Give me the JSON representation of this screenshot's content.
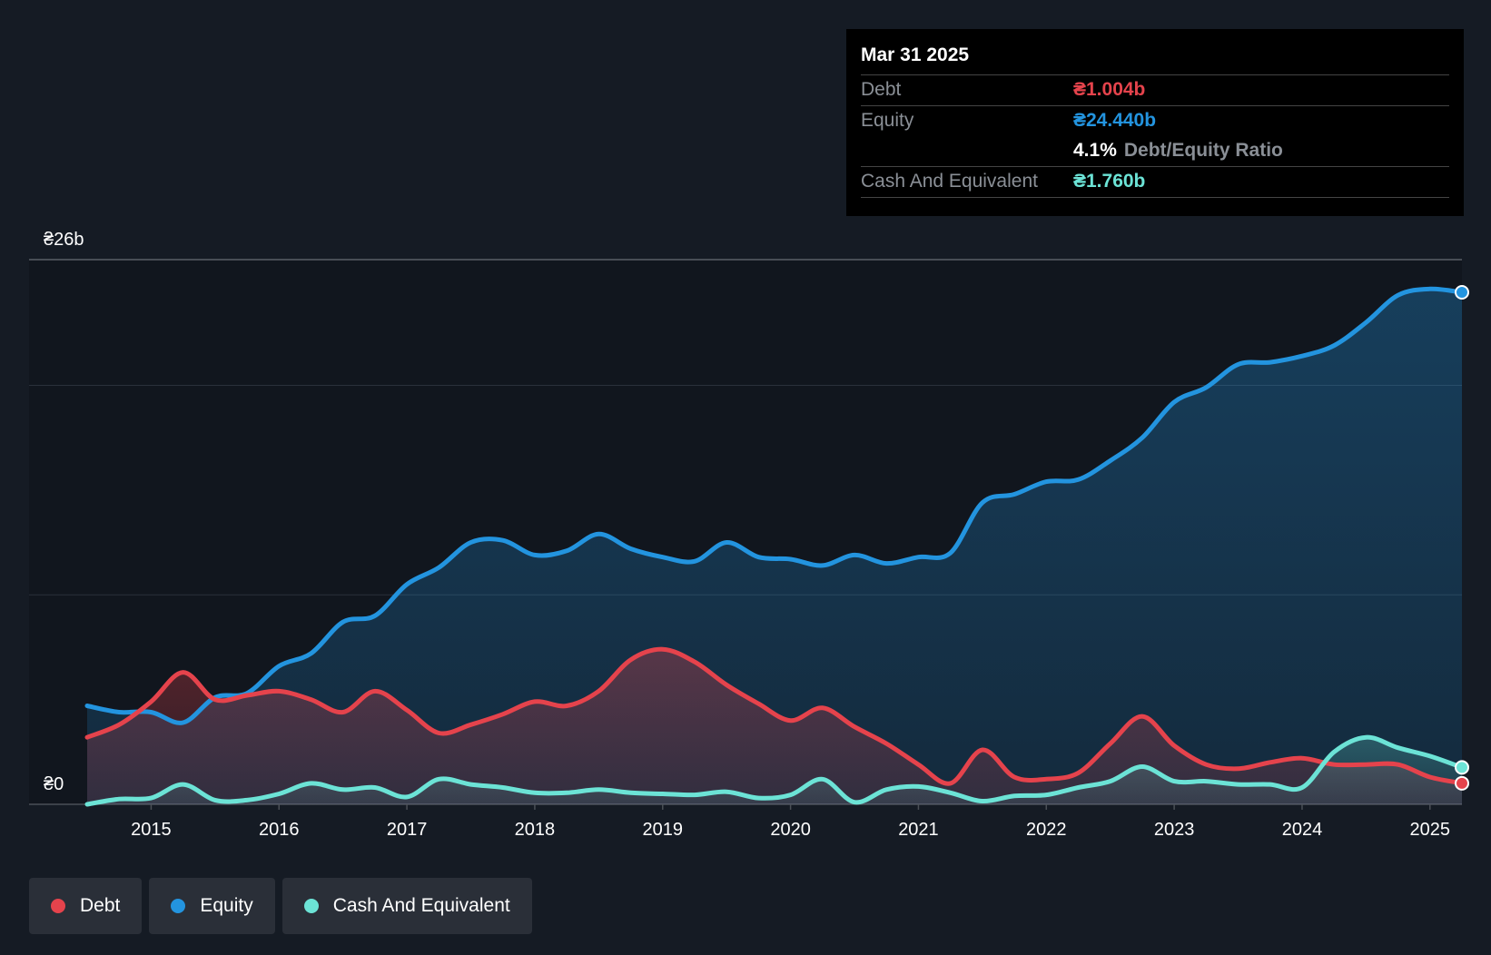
{
  "tooltip": {
    "date": "Mar 31 2025",
    "debt_label": "Debt",
    "debt_value": "₴1.004b",
    "equity_label": "Equity",
    "equity_value": "₴24.440b",
    "ratio_value": "4.1%",
    "ratio_label": "Debt/Equity Ratio",
    "cash_label": "Cash And Equivalent",
    "cash_value": "₴1.760b"
  },
  "legend": {
    "debt": "Debt",
    "equity": "Equity",
    "cash": "Cash And Equivalent"
  },
  "colors": {
    "debt": "#e5434c",
    "equity": "#2394df",
    "cash": "#6ce3d6",
    "background": "#151b24"
  },
  "chart_data": {
    "type": "area",
    "title": "",
    "xlabel": "",
    "ylabel": "",
    "y_top_label": "₴26b",
    "y_bottom_label": "₴0",
    "ylim": [
      0,
      26
    ],
    "xlim": [
      2014.5,
      2025.25
    ],
    "xticks": [
      "2015",
      "2016",
      "2017",
      "2018",
      "2019",
      "2020",
      "2021",
      "2022",
      "2023",
      "2024",
      "2025"
    ],
    "gridlines": [
      0,
      10,
      20,
      26
    ],
    "series": [
      {
        "name": "Equity",
        "x": [
          2014.5,
          2014.75,
          2015.0,
          2015.25,
          2015.5,
          2015.75,
          2016.0,
          2016.25,
          2016.5,
          2016.75,
          2017.0,
          2017.25,
          2017.5,
          2017.75,
          2018.0,
          2018.25,
          2018.5,
          2018.75,
          2019.0,
          2019.25,
          2019.5,
          2019.75,
          2020.0,
          2020.25,
          2020.5,
          2020.75,
          2021.0,
          2021.25,
          2021.5,
          2021.75,
          2022.0,
          2022.25,
          2022.5,
          2022.75,
          2023.0,
          2023.25,
          2023.5,
          2023.75,
          2024.0,
          2024.25,
          2024.5,
          2024.75,
          2025.0,
          2025.25
        ],
        "values": [
          4.7,
          4.4,
          4.4,
          3.9,
          5.1,
          5.3,
          6.6,
          7.2,
          8.7,
          9.0,
          10.5,
          11.3,
          12.5,
          12.6,
          11.9,
          12.1,
          12.9,
          12.2,
          11.8,
          11.6,
          12.5,
          11.8,
          11.7,
          11.4,
          11.9,
          11.5,
          11.8,
          12.0,
          14.4,
          14.8,
          15.4,
          15.5,
          16.4,
          17.5,
          19.2,
          19.9,
          21.0,
          21.1,
          21.4,
          21.9,
          23.0,
          24.3,
          24.6,
          24.44
        ]
      },
      {
        "name": "Debt",
        "x": [
          2014.5,
          2014.75,
          2015.0,
          2015.25,
          2015.5,
          2015.75,
          2016.0,
          2016.25,
          2016.5,
          2016.75,
          2017.0,
          2017.25,
          2017.5,
          2017.75,
          2018.0,
          2018.25,
          2018.5,
          2018.75,
          2019.0,
          2019.25,
          2019.5,
          2019.75,
          2020.0,
          2020.25,
          2020.5,
          2020.75,
          2021.0,
          2021.25,
          2021.5,
          2021.75,
          2022.0,
          2022.25,
          2022.5,
          2022.75,
          2023.0,
          2023.25,
          2023.5,
          2023.75,
          2024.0,
          2024.25,
          2024.5,
          2024.75,
          2025.0,
          2025.25
        ],
        "values": [
          3.2,
          3.8,
          4.9,
          6.3,
          5.0,
          5.2,
          5.4,
          5.0,
          4.4,
          5.4,
          4.5,
          3.4,
          3.8,
          4.3,
          4.9,
          4.7,
          5.4,
          6.9,
          7.4,
          6.8,
          5.7,
          4.8,
          4.0,
          4.6,
          3.7,
          2.9,
          1.9,
          1.0,
          2.6,
          1.3,
          1.2,
          1.5,
          2.9,
          4.2,
          2.8,
          1.9,
          1.7,
          2.0,
          2.2,
          1.9,
          1.9,
          1.9,
          1.3,
          1.004
        ]
      },
      {
        "name": "Cash And Equivalent",
        "x": [
          2014.5,
          2014.75,
          2015.0,
          2015.25,
          2015.5,
          2015.75,
          2016.0,
          2016.25,
          2016.5,
          2016.75,
          2017.0,
          2017.25,
          2017.5,
          2017.75,
          2018.0,
          2018.25,
          2018.5,
          2018.75,
          2019.0,
          2019.25,
          2019.5,
          2019.75,
          2020.0,
          2020.25,
          2020.5,
          2020.75,
          2021.0,
          2021.25,
          2021.5,
          2021.75,
          2022.0,
          2022.25,
          2022.5,
          2022.75,
          2023.0,
          2023.25,
          2023.5,
          2023.75,
          2024.0,
          2024.25,
          2024.5,
          2024.75,
          2025.0,
          2025.25
        ],
        "values": [
          0.0,
          0.25,
          0.3,
          0.95,
          0.2,
          0.2,
          0.5,
          1.0,
          0.7,
          0.8,
          0.35,
          1.2,
          0.95,
          0.8,
          0.55,
          0.55,
          0.7,
          0.55,
          0.5,
          0.45,
          0.6,
          0.3,
          0.45,
          1.2,
          0.1,
          0.7,
          0.85,
          0.55,
          0.15,
          0.4,
          0.45,
          0.8,
          1.1,
          1.8,
          1.1,
          1.1,
          0.95,
          0.95,
          0.8,
          2.5,
          3.2,
          2.7,
          2.3,
          1.76
        ]
      }
    ]
  }
}
